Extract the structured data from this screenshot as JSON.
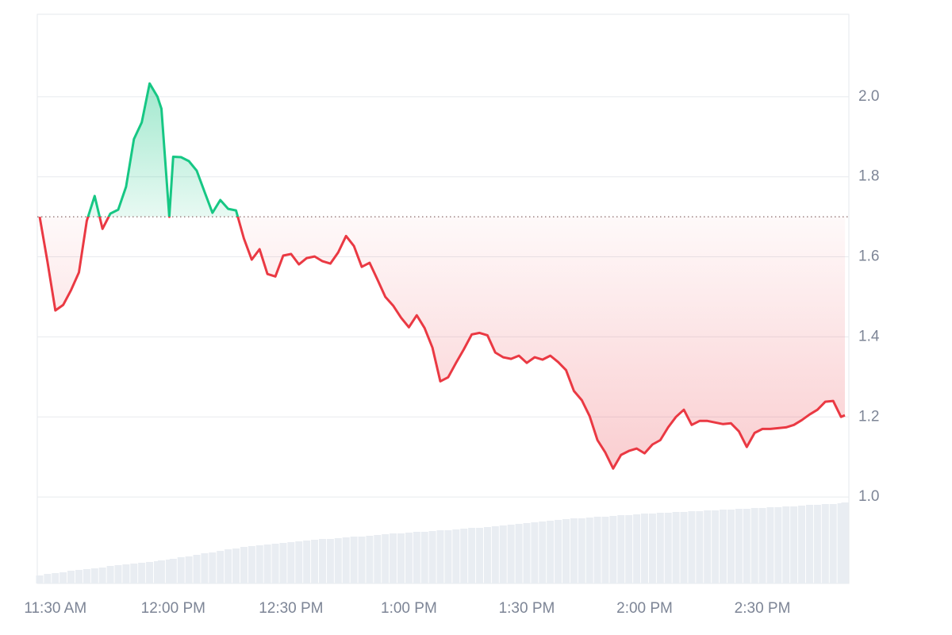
{
  "chart_data": {
    "type": "line",
    "x": [
      "11:26 AM",
      "11:28 AM",
      "11:30 AM",
      "11:32 AM",
      "11:34 AM",
      "11:36 AM",
      "11:38 AM",
      "11:40 AM",
      "11:42 AM",
      "11:44 AM",
      "11:46 AM",
      "11:48 AM",
      "11:50 AM",
      "11:52 AM",
      "11:54 AM",
      "11:56 AM",
      "11:57 AM",
      "11:59 AM",
      "12:00 PM",
      "12:02 PM",
      "12:04 PM",
      "12:06 PM",
      "12:08 PM",
      "12:10 PM",
      "12:12 PM",
      "12:14 PM",
      "12:16 PM",
      "12:18 PM",
      "12:20 PM",
      "12:22 PM",
      "12:24 PM",
      "12:26 PM",
      "12:28 PM",
      "12:30 PM",
      "12:32 PM",
      "12:34 PM",
      "12:36 PM",
      "12:38 PM",
      "12:40 PM",
      "12:42 PM",
      "12:44 PM",
      "12:46 PM",
      "12:48 PM",
      "12:50 PM",
      "12:52 PM",
      "12:54 PM",
      "12:56 PM",
      "12:58 PM",
      "1:00 PM",
      "1:02 PM",
      "1:04 PM",
      "1:06 PM",
      "1:08 PM",
      "1:10 PM",
      "1:12 PM",
      "1:14 PM",
      "1:16 PM",
      "1:18 PM",
      "1:20 PM",
      "1:22 PM",
      "1:24 PM",
      "1:26 PM",
      "1:28 PM",
      "1:30 PM",
      "1:32 PM",
      "1:34 PM",
      "1:36 PM",
      "1:38 PM",
      "1:40 PM",
      "1:42 PM",
      "1:44 PM",
      "1:46 PM",
      "1:48 PM",
      "1:50 PM",
      "1:52 PM",
      "1:54 PM",
      "1:56 PM",
      "1:58 PM",
      "2:00 PM",
      "2:02 PM",
      "2:04 PM",
      "2:06 PM",
      "2:08 PM",
      "2:10 PM",
      "2:12 PM",
      "2:14 PM",
      "2:16 PM",
      "2:18 PM",
      "2:20 PM",
      "2:22 PM",
      "2:24 PM",
      "2:26 PM",
      "2:28 PM",
      "2:30 PM",
      "2:32 PM",
      "2:34 PM",
      "2:36 PM",
      "2:38 PM",
      "2:40 PM",
      "2:42 PM",
      "2:44 PM",
      "2:46 PM",
      "2:48 PM",
      "2:50 PM",
      "2:51 PM"
    ],
    "values": [
      1.7,
      1.587,
      1.466,
      1.48,
      1.517,
      1.561,
      1.69,
      1.752,
      1.67,
      1.708,
      1.718,
      1.775,
      1.894,
      1.936,
      2.033,
      2.0,
      1.97,
      1.7,
      1.85,
      1.849,
      1.839,
      1.815,
      1.762,
      1.71,
      1.742,
      1.72,
      1.716,
      1.646,
      1.593,
      1.619,
      1.557,
      1.551,
      1.603,
      1.607,
      1.581,
      1.597,
      1.601,
      1.589,
      1.583,
      1.611,
      1.652,
      1.627,
      1.575,
      1.585,
      1.543,
      1.5,
      1.478,
      1.448,
      1.424,
      1.454,
      1.422,
      1.373,
      1.289,
      1.299,
      1.335,
      1.369,
      1.406,
      1.41,
      1.404,
      1.361,
      1.349,
      1.345,
      1.353,
      1.335,
      1.349,
      1.343,
      1.353,
      1.337,
      1.317,
      1.265,
      1.242,
      1.202,
      1.142,
      1.111,
      1.071,
      1.105,
      1.115,
      1.121,
      1.109,
      1.131,
      1.142,
      1.174,
      1.2,
      1.218,
      1.18,
      1.19,
      1.19,
      1.186,
      1.182,
      1.184,
      1.164,
      1.125,
      1.16,
      1.17,
      1.17,
      1.172,
      1.174,
      1.18,
      1.192,
      1.206,
      1.218,
      1.238,
      1.24,
      1.2,
      1.204
    ],
    "volume": [
      10,
      12,
      13,
      14,
      16,
      17,
      18,
      19,
      20,
      22,
      23,
      24,
      25,
      26,
      27,
      28,
      29,
      30,
      31,
      33,
      34,
      36,
      38,
      39,
      41,
      43,
      44,
      46,
      47,
      48,
      49,
      50,
      51,
      52,
      53,
      54,
      55,
      56,
      56,
      57,
      58,
      59,
      59,
      60,
      61,
      62,
      63,
      63,
      64,
      65,
      65,
      66,
      67,
      67,
      68,
      69,
      70,
      70,
      71,
      72,
      73,
      74,
      75,
      76,
      77,
      78,
      79,
      80,
      81,
      82,
      82,
      83,
      84,
      84,
      85,
      86,
      86,
      87,
      88,
      88,
      89,
      89,
      90,
      90,
      91,
      91,
      92,
      92,
      93,
      93,
      94,
      94,
      95,
      95,
      96,
      96,
      97,
      97,
      98,
      99,
      99,
      100,
      100,
      101,
      102
    ],
    "baseline": 1.7,
    "up_color": "#16c784",
    "down_color": "#ea3943",
    "volume_color": "#e9edf2",
    "xlim": [
      "11:25 AM",
      "2:52 PM"
    ],
    "xticks": [
      "11:30 AM",
      "12:00 PM",
      "12:30 PM",
      "1:00 PM",
      "1:30 PM",
      "2:00 PM",
      "2:30 PM"
    ],
    "ylim": [
      0.784,
      2.206
    ],
    "yticks": [
      {
        "value": 1.0,
        "label": "1.0"
      },
      1.2,
      1.4,
      1.6,
      1.8,
      {
        "value": 2.0,
        "label": "2.0"
      }
    ],
    "grid": true
  }
}
